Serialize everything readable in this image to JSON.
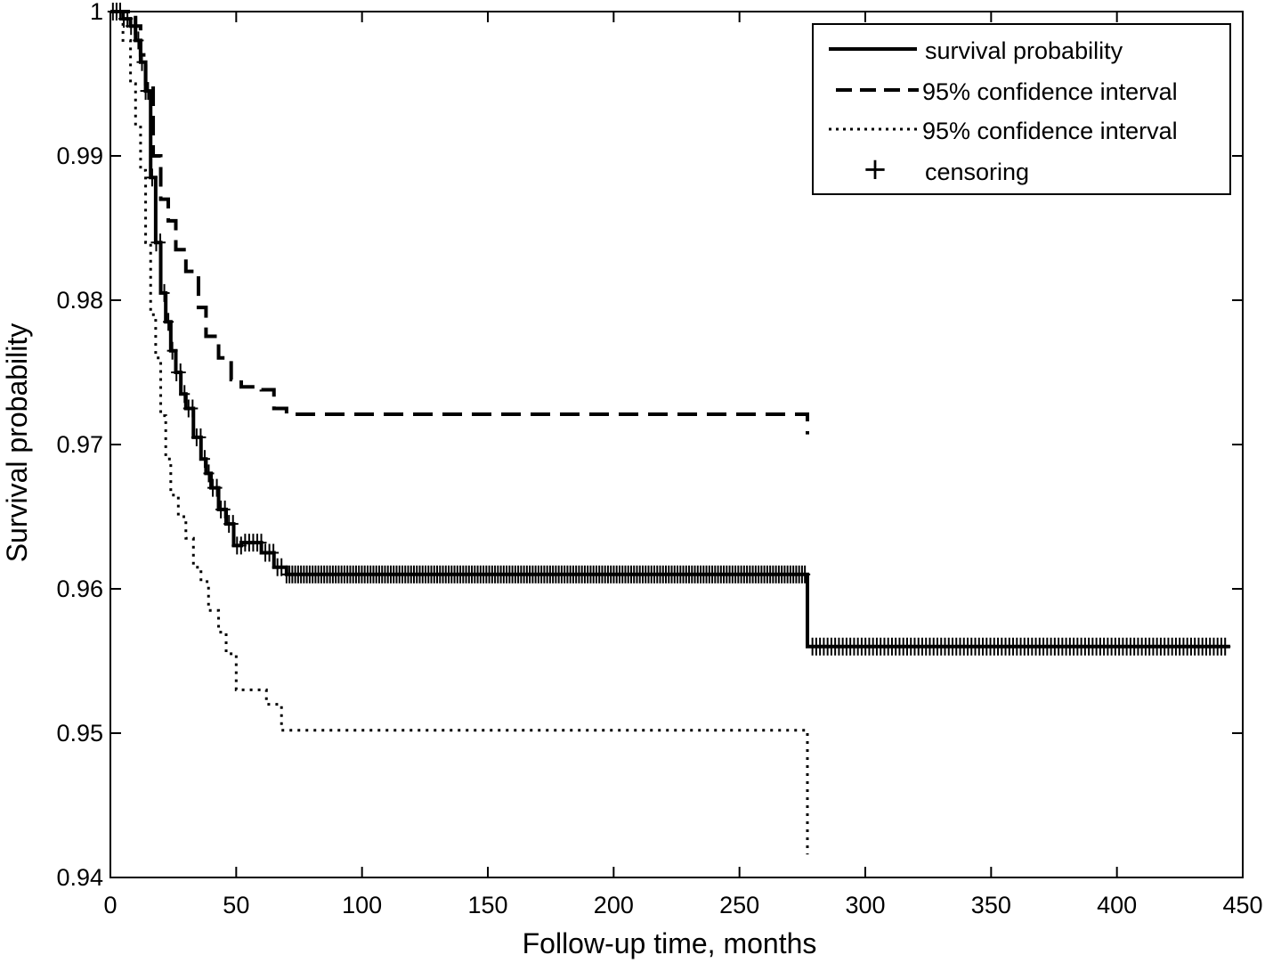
{
  "chart_data": {
    "type": "line",
    "title": "",
    "xlabel": "Follow-up time, months",
    "ylabel": "Survival probability",
    "xlim": [
      0,
      450
    ],
    "ylim": [
      0.94,
      1
    ],
    "xticks": [
      0,
      50,
      100,
      150,
      200,
      250,
      300,
      350,
      400,
      450
    ],
    "xtick_labels": [
      "0",
      "50",
      "100",
      "150",
      "200",
      "250",
      "300",
      "350",
      "400",
      "450"
    ],
    "yticks": [
      0.94,
      0.95,
      0.96,
      0.97,
      0.98,
      0.99,
      1
    ],
    "ytick_labels": [
      "0.94",
      "0.95",
      "0.96",
      "0.97",
      "0.98",
      "0.99",
      "1"
    ],
    "grid": false,
    "legend_position": "top-right",
    "legend": {
      "survival": "survival probability",
      "upper": "95% confidence interval",
      "lower": "95% confidence interval",
      "censor": "censoring"
    },
    "series": [
      {
        "key": "survival",
        "style": "solid",
        "x": [
          0,
          5,
          8,
          10,
          12,
          14,
          16,
          18,
          20,
          22,
          24,
          26,
          28,
          30,
          33,
          36,
          38,
          40,
          43,
          46,
          49,
          52,
          60,
          65,
          70,
          277,
          277,
          445
        ],
        "y": [
          1,
          0.9995,
          0.999,
          0.998,
          0.9965,
          0.9945,
          0.9885,
          0.984,
          0.9805,
          0.9785,
          0.9765,
          0.975,
          0.9735,
          0.9725,
          0.9705,
          0.969,
          0.968,
          0.967,
          0.9655,
          0.9645,
          0.963,
          0.9632,
          0.9625,
          0.9615,
          0.961,
          0.961,
          0.956,
          0.956
        ]
      },
      {
        "key": "upper",
        "style": "dashed",
        "x": [
          0,
          6,
          10,
          12,
          14,
          17,
          20,
          23,
          26,
          30,
          35,
          38,
          43,
          48,
          52,
          60,
          65,
          70,
          277,
          277
        ],
        "y": [
          1,
          1,
          0.999,
          0.997,
          0.995,
          0.99,
          0.987,
          0.9855,
          0.9835,
          0.982,
          0.9795,
          0.9775,
          0.976,
          0.9745,
          0.974,
          0.9738,
          0.9725,
          0.9721,
          0.9721,
          0.9707
        ]
      },
      {
        "key": "lower",
        "style": "dotted",
        "x": [
          0,
          5,
          8,
          10,
          12,
          14,
          16,
          18,
          20,
          22,
          24,
          27,
          30,
          33,
          36,
          39,
          43,
          46,
          50,
          55,
          62,
          68,
          70,
          277,
          277
        ],
        "y": [
          1,
          0.998,
          0.995,
          0.992,
          0.989,
          0.984,
          0.979,
          0.976,
          0.972,
          0.969,
          0.9665,
          0.965,
          0.9635,
          0.9615,
          0.9605,
          0.9585,
          0.957,
          0.9555,
          0.953,
          0.953,
          0.952,
          0.9502,
          0.9502,
          0.9502,
          0.9416
        ]
      }
    ],
    "censoring": {
      "marker": "+",
      "segments": [
        {
          "from": 1,
          "to": 14,
          "count": 10
        },
        {
          "from": 15,
          "to": 68,
          "count": 34
        },
        {
          "from": 70,
          "to": 276,
          "count": 180
        },
        {
          "from": 279,
          "to": 443,
          "count": 110
        }
      ]
    }
  }
}
